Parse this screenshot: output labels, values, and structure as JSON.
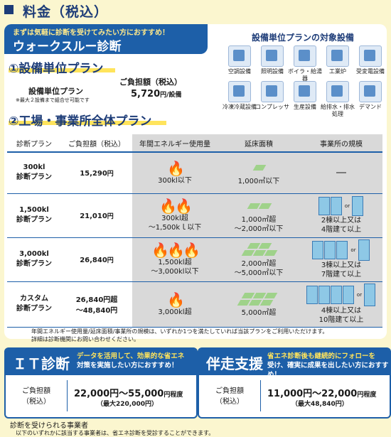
{
  "header": {
    "title": "料金（税込）"
  },
  "walkthrough": {
    "tagline": "まずは気軽に診断を受けてみたい方におすすめ！",
    "title": "ウォークスルー診断"
  },
  "equipment_plan": {
    "heading": "①設備単位プラン",
    "name": "設備単位プラン",
    "note": "※最大２設備まで組合せ可能です",
    "cost_label": "ご負担額（税込）",
    "price": "5,720",
    "price_unit": "円/設備"
  },
  "target_equipment": {
    "title": "設備単位プランの対象設備",
    "items": [
      {
        "label": "空調設備",
        "icon": "air-conditioner-icon"
      },
      {
        "label": "照明設備",
        "icon": "light-bulb-icon"
      },
      {
        "label": "ボイラ・給湯器",
        "icon": "boiler-icon"
      },
      {
        "label": "工業炉",
        "icon": "furnace-icon"
      },
      {
        "label": "受変電設備",
        "icon": "substation-icon"
      },
      {
        "label": "冷凍冷蔵設備",
        "icon": "refrigerator-icon"
      },
      {
        "label": "コンプレッサ",
        "icon": "compressor-icon"
      },
      {
        "label": "生産設備",
        "icon": "production-machine-icon"
      },
      {
        "label": "給排水・排水処理",
        "icon": "water-faucet-icon"
      },
      {
        "label": "デマンド",
        "icon": "monitor-icon"
      }
    ]
  },
  "factory_plan": {
    "heading": "②工場・事業所全体プラン",
    "columns": [
      "診断プラン",
      "ご負担額（税込）",
      "年間エネルギー使用量",
      "延床面積",
      "事業所の規模"
    ],
    "rows": [
      {
        "plan": [
          "300kl",
          "診断プラン"
        ],
        "price": "15,290",
        "unit": "円",
        "energy": [
          "300kl以下"
        ],
        "area": [
          "1,000㎡以下"
        ],
        "scale": [
          "―"
        ]
      },
      {
        "plan": [
          "1,500kl",
          "診断プラン"
        ],
        "price": "21,010",
        "unit": "円",
        "energy": [
          "300kl超",
          "～1,500kｌ以下"
        ],
        "area": [
          "1,000㎡超",
          "～2,000㎡以下"
        ],
        "scale": [
          "2棟以上又は",
          "4階建て以上"
        ]
      },
      {
        "plan": [
          "3,000kl",
          "診断プラン"
        ],
        "price": "26,840",
        "unit": "円",
        "energy": [
          "1,500kl超",
          "～3,000kl以下"
        ],
        "area": [
          "2,000㎡超",
          "～5,000㎡以下"
        ],
        "scale": [
          "3棟以上又は",
          "7階建て以上"
        ]
      },
      {
        "plan": [
          "カスタム",
          "診断プラン"
        ],
        "price": "26,840円超",
        "unit": "",
        "price2": "～48,840円",
        "energy": [
          "3,000kl超"
        ],
        "area": [
          "5,000㎡超"
        ],
        "scale": [
          "4棟以上又は",
          "10階建て以上"
        ]
      }
    ],
    "or_label": "or",
    "note1": "年間エネルギー使用量/延床面積/事業所の規模は、いずれか1つを満たしていれば当該プランをご利用いただけます。",
    "note2": "詳細は診断機関にお問い合わせください。"
  },
  "it_diagnosis": {
    "name": "ＩＴ診断",
    "desc_hl": "データを活用して、効果的な省エネ",
    "desc_rest": "対策を実施したい方におすすめ！",
    "cost_label": [
      "ご負担額",
      "（税込）"
    ],
    "price": "22,000円～55,000",
    "price_unit": "円程度",
    "max": "（最大220,000円）"
  },
  "support": {
    "name": "伴走支援",
    "desc_hl": "省エネ診断後も継続的にフォローを",
    "desc_rest": "受け、確実に成果を出したい方に",
    "desc_rest2": "おすすめ！",
    "cost_label": [
      "ご負担額",
      "（税込）"
    ],
    "price": "11,000円～22,000",
    "price_unit": "円程度",
    "max": "（最大48,840円）"
  },
  "footer": {
    "title": "診断を受けられる事業者",
    "text": "以下のいずれかに該当する事業者は、省エネ診断を受診することができます。"
  }
}
